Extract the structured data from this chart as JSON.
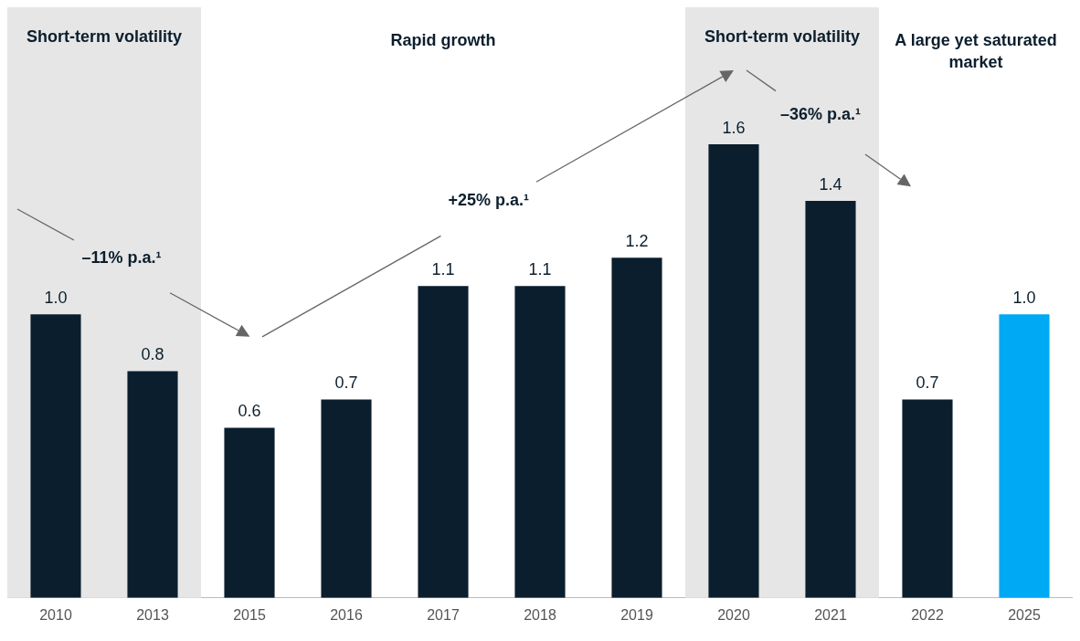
{
  "chart_data": {
    "type": "bar",
    "categories": [
      "2010",
      "2013",
      "2015",
      "2016",
      "2017",
      "2018",
      "2019",
      "2020",
      "2021",
      "2022",
      "2025"
    ],
    "values": [
      1.0,
      0.8,
      0.6,
      0.7,
      1.1,
      1.1,
      1.2,
      1.6,
      1.4,
      0.7,
      1.0
    ],
    "colors": [
      "#0b1e2d",
      "#0b1e2d",
      "#0b1e2d",
      "#0b1e2d",
      "#0b1e2d",
      "#0b1e2d",
      "#0b1e2d",
      "#0b1e2d",
      "#0b1e2d",
      "#0b1e2d",
      "#00a9f4"
    ],
    "value_labels": [
      "1.0",
      "0.8",
      "0.6",
      "0.7",
      "1.1",
      "1.1",
      "1.2",
      "1.6",
      "1.4",
      "0.7",
      "1.0"
    ],
    "grid": false,
    "legend": false,
    "bands": [
      {
        "axis": "x",
        "from": "2010",
        "to": "2013",
        "label": "Short-term volatility",
        "color": "#e6e6e6"
      },
      {
        "axis": "x",
        "from": "2020",
        "to": "2021",
        "label": "Short-term volatility",
        "color": "#e6e6e6"
      }
    ],
    "annotations": [
      "Rapid growth",
      "A large yet saturated market",
      "–11% p.a.¹",
      "+25% p.a.¹",
      "–36% p.a.¹"
    ]
  }
}
